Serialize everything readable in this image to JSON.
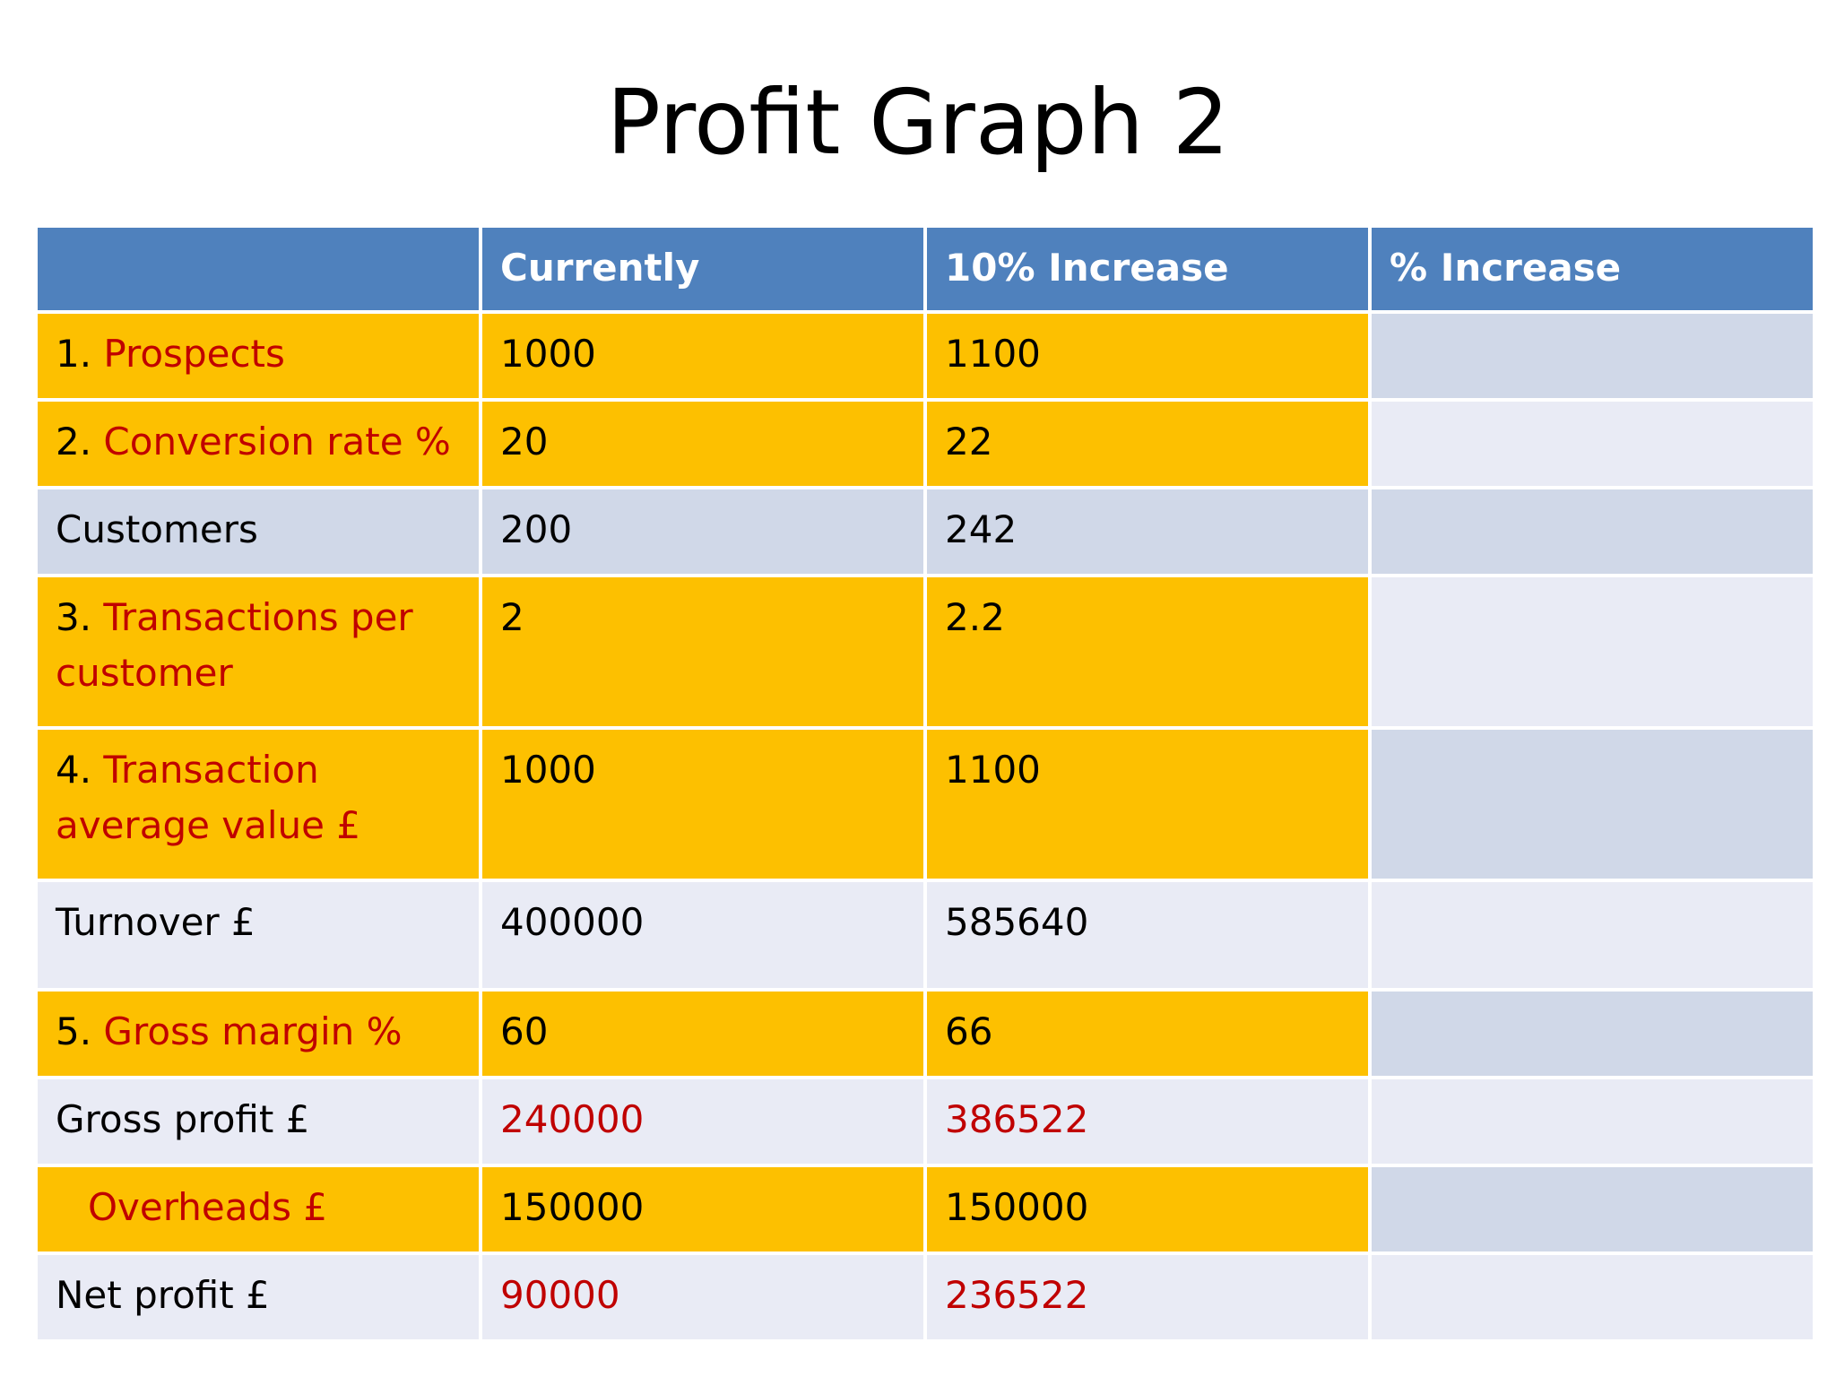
{
  "slide": {
    "title": "Profit Graph 2"
  },
  "table": {
    "headers": [
      "",
      "Currently",
      "10% Increase",
      "% Increase"
    ],
    "rows": [
      {
        "num": "1.",
        "label": " Prospects",
        "currently": "1000",
        "increase10": "1100",
        "pct": ""
      },
      {
        "num": "2.",
        "label": " Conversion rate %",
        "currently": "20",
        "increase10": "22",
        "pct": ""
      },
      {
        "num": "",
        "label": "Customers",
        "currently": "200",
        "increase10": "242",
        "pct": ""
      },
      {
        "num": "3.",
        "label": " Transactions per customer",
        "currently": "2",
        "increase10": "2.2",
        "pct": ""
      },
      {
        "num": "4.",
        "label": " Transaction average value £",
        "currently": "1000",
        "increase10": "1100",
        "pct": ""
      },
      {
        "num": "",
        "label": "Turnover £",
        "currently": "400000",
        "increase10": "585640",
        "pct": ""
      },
      {
        "num": "5.",
        "label": " Gross margin %",
        "currently": "60",
        "increase10": "66",
        "pct": ""
      },
      {
        "num": "",
        "label": "Gross profit £",
        "currently": "240000",
        "increase10": "386522",
        "pct": ""
      },
      {
        "num": "",
        "label": "Overheads £",
        "currently": "150000",
        "increase10": "150000",
        "pct": ""
      },
      {
        "num": "",
        "label": "Net profit £",
        "currently": "90000",
        "increase10": "236522",
        "pct": ""
      }
    ]
  },
  "colors": {
    "header": "#4f81bd",
    "input_row": "#fdc000",
    "band_dark": "#d0d8e8",
    "band_light": "#e9ebf5",
    "accent_red": "#c00000"
  }
}
